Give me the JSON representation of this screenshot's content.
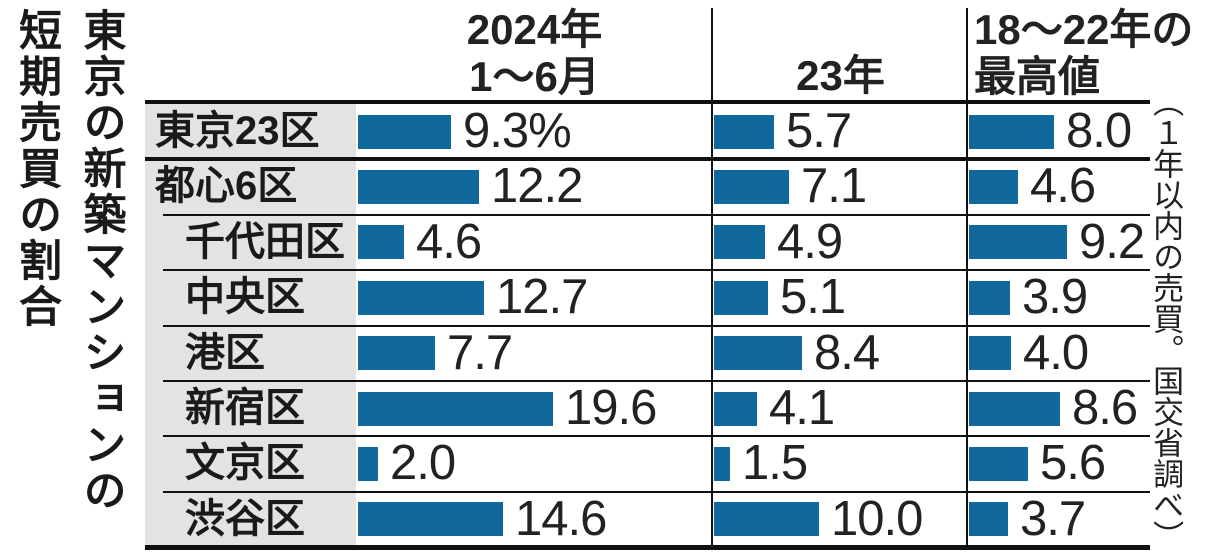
{
  "title": {
    "line1": "東京の新築マンションの",
    "line2": "短期売買の割合"
  },
  "side_note": "（１年以内の売買。国交省調べ）",
  "chart_data": {
    "type": "bar",
    "orientation": "horizontal",
    "unit": "%",
    "title": "東京の新築マンションの短期売買の割合",
    "note": "（１年以内の売買。国交省調べ）",
    "columns": [
      {
        "line1": "2024年",
        "line2": "1〜6月"
      },
      {
        "line1": "",
        "line2": "23年"
      },
      {
        "line1": "18〜22年の",
        "line2": "最高値"
      }
    ],
    "rows": [
      {
        "name": "東京23区",
        "indent": false,
        "values": [
          9.3,
          5.7,
          8.0
        ],
        "display": [
          "9.3%",
          "5.7",
          "8.0"
        ]
      },
      {
        "name": "都心6区",
        "indent": false,
        "values": [
          12.2,
          7.1,
          4.6
        ],
        "display": [
          "12.2",
          "7.1",
          "4.6"
        ]
      },
      {
        "name": "千代田区",
        "indent": true,
        "values": [
          4.6,
          4.9,
          9.2
        ],
        "display": [
          "4.6",
          "4.9",
          "9.2"
        ]
      },
      {
        "name": "中央区",
        "indent": true,
        "values": [
          12.7,
          5.1,
          3.9
        ],
        "display": [
          "12.7",
          "5.1",
          "3.9"
        ]
      },
      {
        "name": "港区",
        "indent": true,
        "values": [
          7.7,
          8.4,
          4.0
        ],
        "display": [
          "7.7",
          "8.4",
          "4.0"
        ]
      },
      {
        "name": "新宿区",
        "indent": true,
        "values": [
          19.6,
          4.1,
          8.6
        ],
        "display": [
          "19.6",
          "4.1",
          "8.6"
        ]
      },
      {
        "name": "文京区",
        "indent": true,
        "values": [
          2.0,
          1.5,
          5.6
        ],
        "display": [
          "2.0",
          "1.5",
          "5.6"
        ]
      },
      {
        "name": "渋谷区",
        "indent": true,
        "values": [
          14.6,
          10.0,
          3.7
        ],
        "display": [
          "14.6",
          "10.0",
          "3.7"
        ]
      }
    ],
    "colors": {
      "bar": "#11689c",
      "label_bg": "#e3e3e3",
      "line": "#111111",
      "text": "#1a1a1a"
    }
  }
}
